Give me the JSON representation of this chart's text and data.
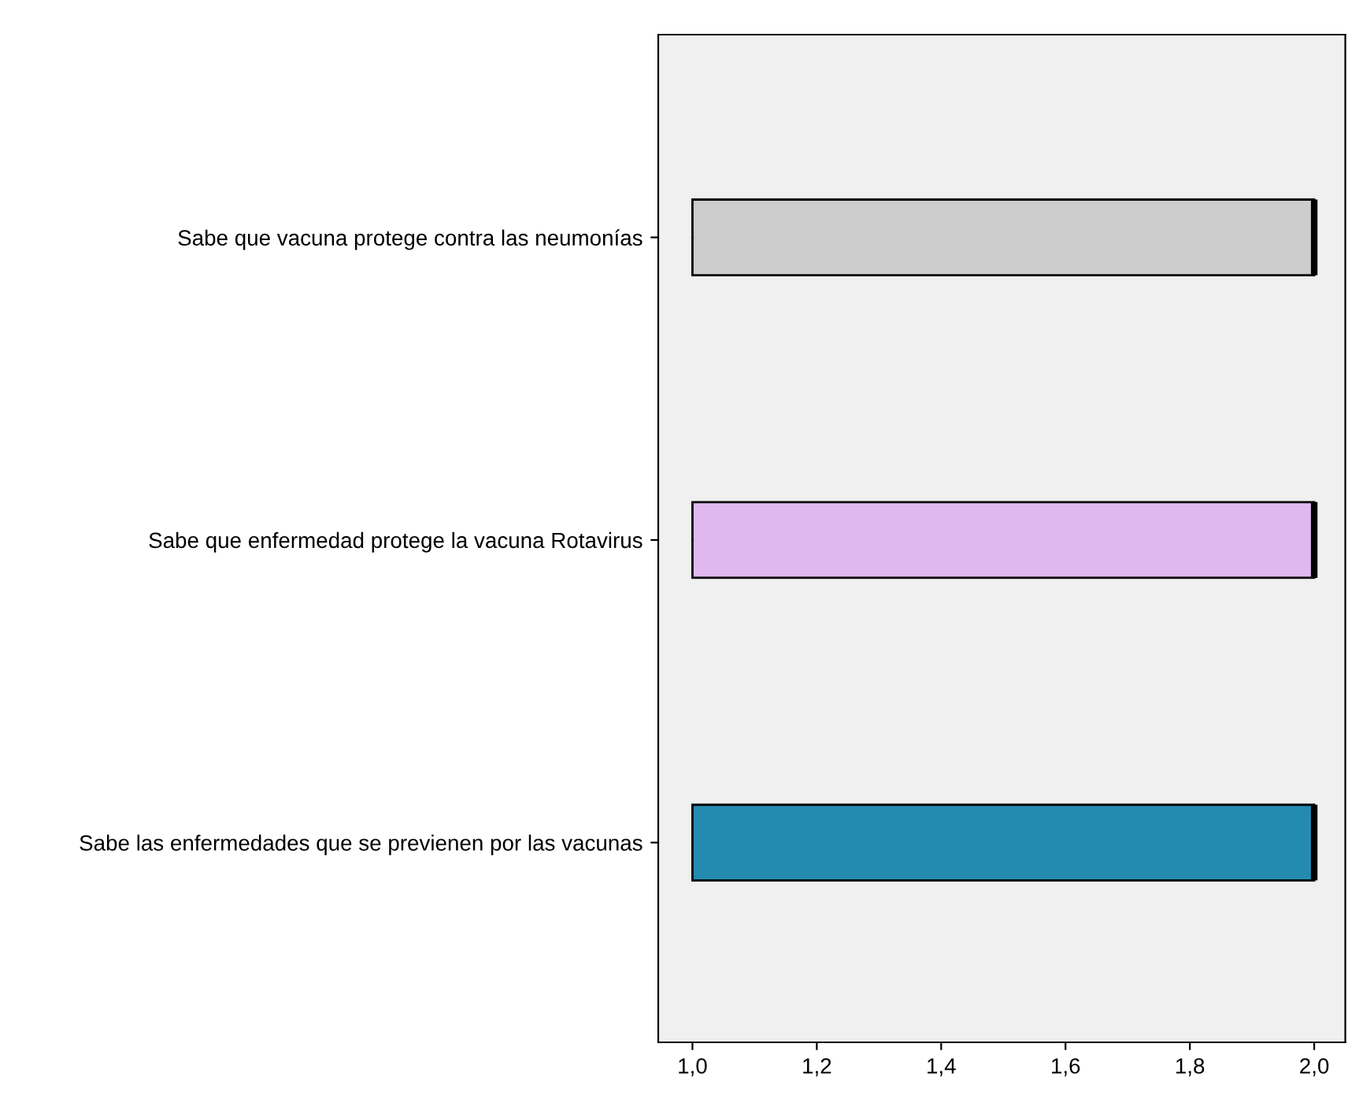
{
  "chart_data": {
    "type": "box",
    "orientation": "horizontal",
    "categories": [
      "Sabe que vacuna protege contra las neumonías",
      "Sabe que enfermedad protege la vacuna Rotavirus",
      "Sabe las enfermedades que se previenen por las vacunas"
    ],
    "boxes": [
      {
        "low": 1,
        "q1": 1,
        "median": 2,
        "q3": 2,
        "high": 2
      },
      {
        "low": 1,
        "q1": 1,
        "median": 2,
        "q3": 2,
        "high": 2
      },
      {
        "low": 1,
        "q1": 1,
        "median": 2,
        "q3": 2,
        "high": 2
      }
    ],
    "colors": [
      "#cccccc",
      "#dfb8f0",
      "#248bb0"
    ],
    "xlim": [
      0.945,
      2.05
    ],
    "xticks": [
      {
        "value": 1.0,
        "label": "1,0"
      },
      {
        "value": 1.2,
        "label": "1,2"
      },
      {
        "value": 1.4,
        "label": "1,4"
      },
      {
        "value": 1.6,
        "label": "1,6"
      },
      {
        "value": 1.8,
        "label": "1,8"
      },
      {
        "value": 2.0,
        "label": "2,0"
      }
    ],
    "grid": false
  }
}
